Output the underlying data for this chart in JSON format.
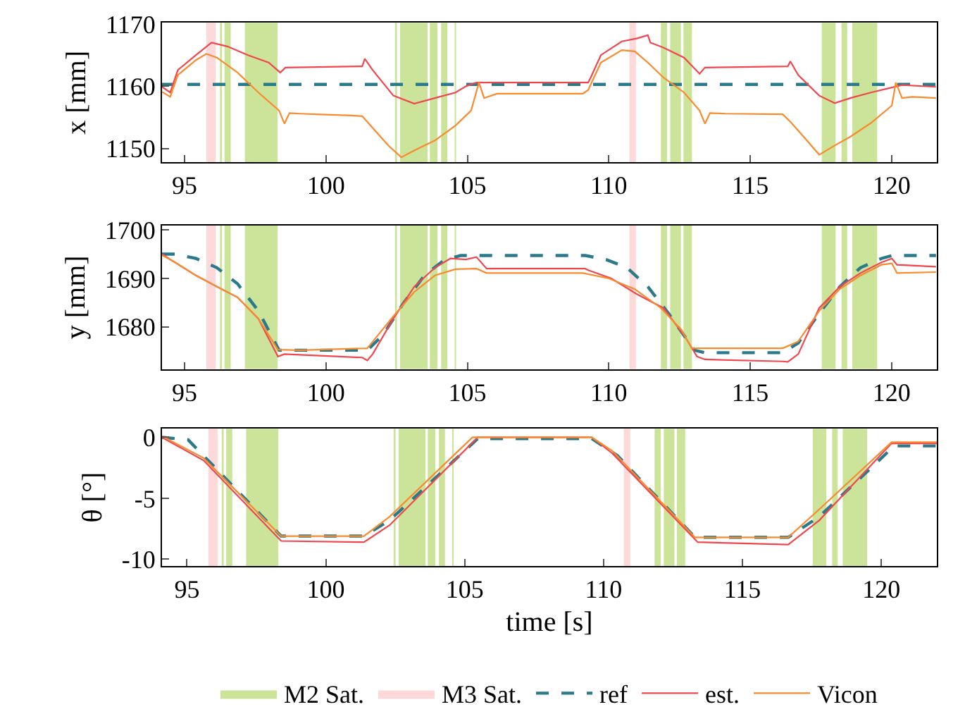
{
  "chart_data": [
    {
      "type": "line",
      "ylabel": "x [mm]",
      "xlim": [
        94.2,
        121.6
      ],
      "xticks": [
        95,
        100,
        105,
        110,
        115,
        120
      ],
      "ylim": [
        1147.8,
        1170.2
      ],
      "yticks": [
        1150,
        1160,
        1170
      ],
      "grid": false,
      "bands": [
        {
          "axis": "x",
          "from": 96.25,
          "to": 96.32,
          "color": "#cce49a"
        },
        {
          "axis": "x",
          "from": 96.41,
          "to": 96.63,
          "color": "#cce49a"
        },
        {
          "axis": "x",
          "from": 97.13,
          "to": 98.29,
          "color": "#cce49a"
        },
        {
          "axis": "x",
          "from": 102.44,
          "to": 102.51,
          "color": "#cce49a"
        },
        {
          "axis": "x",
          "from": 102.62,
          "to": 103.59,
          "color": "#cce49a"
        },
        {
          "axis": "x",
          "from": 103.67,
          "to": 103.94,
          "color": "#cce49a"
        },
        {
          "axis": "x",
          "from": 104.07,
          "to": 104.29,
          "color": "#cce49a"
        },
        {
          "axis": "x",
          "from": 104.55,
          "to": 104.6,
          "color": "#cce49a"
        },
        {
          "axis": "x",
          "from": 111.84,
          "to": 112.06,
          "color": "#cce49a"
        },
        {
          "axis": "x",
          "from": 112.17,
          "to": 112.55,
          "color": "#cce49a"
        },
        {
          "axis": "x",
          "from": 112.64,
          "to": 112.94,
          "color": "#cce49a"
        },
        {
          "axis": "x",
          "from": 117.53,
          "to": 118.02,
          "color": "#cce49a"
        },
        {
          "axis": "x",
          "from": 118.23,
          "to": 118.43,
          "color": "#cce49a"
        },
        {
          "axis": "x",
          "from": 118.61,
          "to": 119.49,
          "color": "#cce49a"
        },
        {
          "axis": "x",
          "from": 95.77,
          "to": 96.1,
          "color": "#fdd9d9"
        },
        {
          "axis": "x",
          "from": 110.73,
          "to": 110.96,
          "color": "#fdd9d9"
        }
      ],
      "series": [
        {
          "color": "#2a7a8c",
          "line_style": "dashed",
          "x": [
            94.2,
            121.6
          ],
          "values": [
            1160.3,
            1160.3
          ]
        },
        {
          "color": "#f0474f",
          "x": [
            94.2,
            94.49,
            94.76,
            95.4,
            95.95,
            96.51,
            97.24,
            97.97,
            98.38,
            98.56,
            101.28,
            101.37,
            101.65,
            102.38,
            103.12,
            103.85,
            104.58,
            104.95,
            105.32,
            109.27,
            109.36,
            109.72,
            110.46,
            111.01,
            111.38,
            111.47,
            111.93,
            112.66,
            113.21,
            113.4,
            116.33,
            116.42,
            116.7,
            117.44,
            117.99,
            118.54,
            119.27,
            120.01,
            120.37,
            121.57
          ],
          "values": [
            1159.9,
            1159.0,
            1162.6,
            1165.0,
            1167.0,
            1166.4,
            1165.0,
            1163.8,
            1162.2,
            1163.0,
            1163.2,
            1164.4,
            1162.6,
            1158.5,
            1157.2,
            1158.1,
            1159.0,
            1160.0,
            1160.6,
            1160.6,
            1161.4,
            1165.0,
            1167.2,
            1167.7,
            1168.2,
            1167.0,
            1166.2,
            1164.6,
            1162.0,
            1163.0,
            1163.2,
            1164.0,
            1161.8,
            1158.5,
            1157.3,
            1158.1,
            1159.0,
            1159.8,
            1160.2,
            1159.9
          ]
        },
        {
          "color": "#f98a2e",
          "x": [
            94.2,
            94.49,
            94.76,
            95.4,
            95.77,
            96.14,
            96.87,
            97.61,
            98.34,
            98.53,
            98.71,
            99.08,
            99.63,
            100.91,
            101.28,
            101.65,
            102.2,
            102.66,
            103.12,
            103.85,
            104.58,
            105.13,
            105.41,
            105.59,
            106.05,
            109.08,
            109.27,
            109.72,
            110.46,
            110.92,
            111.38,
            111.93,
            112.66,
            113.21,
            113.4,
            113.58,
            114.13,
            116.15,
            116.42,
            116.89,
            117.44,
            117.99,
            118.54,
            119.27,
            120.01,
            120.15,
            120.37,
            120.74,
            121.57
          ],
          "values": [
            1159.1,
            1158.3,
            1161.8,
            1164.2,
            1165.2,
            1164.6,
            1162.2,
            1159.0,
            1156.1,
            1154.0,
            1155.7,
            1155.6,
            1155.5,
            1155.3,
            1155.2,
            1153.3,
            1150.5,
            1148.6,
            1149.7,
            1151.3,
            1153.7,
            1156.1,
            1160.6,
            1158.1,
            1158.8,
            1158.8,
            1159.4,
            1163.8,
            1165.8,
            1165.6,
            1163.8,
            1161.4,
            1159.0,
            1156.1,
            1154.0,
            1155.7,
            1155.6,
            1155.5,
            1154.3,
            1151.9,
            1149.0,
            1150.5,
            1151.9,
            1154.1,
            1156.9,
            1160.6,
            1158.1,
            1158.3,
            1158.1
          ]
        }
      ]
    },
    {
      "type": "line",
      "ylabel": "y [mm]",
      "xlim": [
        94.2,
        121.6
      ],
      "xticks": [
        95,
        100,
        105,
        110,
        115,
        120
      ],
      "ylim": [
        1671.3,
        1700.9
      ],
      "yticks": [
        1680,
        1690,
        1700
      ],
      "grid": false,
      "bands": [
        {
          "axis": "x",
          "from": 96.25,
          "to": 96.32,
          "color": "#cce49a"
        },
        {
          "axis": "x",
          "from": 96.41,
          "to": 96.63,
          "color": "#cce49a"
        },
        {
          "axis": "x",
          "from": 97.13,
          "to": 98.29,
          "color": "#cce49a"
        },
        {
          "axis": "x",
          "from": 102.44,
          "to": 102.51,
          "color": "#cce49a"
        },
        {
          "axis": "x",
          "from": 102.62,
          "to": 103.59,
          "color": "#cce49a"
        },
        {
          "axis": "x",
          "from": 103.67,
          "to": 103.94,
          "color": "#cce49a"
        },
        {
          "axis": "x",
          "from": 104.07,
          "to": 104.29,
          "color": "#cce49a"
        },
        {
          "axis": "x",
          "from": 104.55,
          "to": 104.6,
          "color": "#cce49a"
        },
        {
          "axis": "x",
          "from": 111.84,
          "to": 112.06,
          "color": "#cce49a"
        },
        {
          "axis": "x",
          "from": 112.17,
          "to": 112.55,
          "color": "#cce49a"
        },
        {
          "axis": "x",
          "from": 112.64,
          "to": 112.94,
          "color": "#cce49a"
        },
        {
          "axis": "x",
          "from": 117.53,
          "to": 118.02,
          "color": "#cce49a"
        },
        {
          "axis": "x",
          "from": 118.23,
          "to": 118.43,
          "color": "#cce49a"
        },
        {
          "axis": "x",
          "from": 118.61,
          "to": 119.49,
          "color": "#cce49a"
        },
        {
          "axis": "x",
          "from": 95.77,
          "to": 96.1,
          "color": "#fdd9d9"
        },
        {
          "axis": "x",
          "from": 110.73,
          "to": 110.96,
          "color": "#fdd9d9"
        }
      ],
      "series": [
        {
          "color": "#2a7a8c",
          "line_style": "dashed",
          "x": [
            94.2,
            94.67,
            95.4,
            96.14,
            96.87,
            97.61,
            98.34,
            101.46,
            102.01,
            102.75,
            103.48,
            104.21,
            104.76,
            109.17,
            109.9,
            110.64,
            111.38,
            112.11,
            113.03,
            113.4,
            116.15,
            116.7,
            117.44,
            118.17,
            118.9,
            119.64,
            120.01,
            121.57
          ],
          "values": [
            1695.0,
            1695.0,
            1694.1,
            1692.2,
            1688.9,
            1683.3,
            1675.2,
            1675.2,
            1678.3,
            1685.0,
            1690.6,
            1693.9,
            1694.7,
            1694.7,
            1693.9,
            1692.2,
            1688.3,
            1682.8,
            1675.2,
            1674.7,
            1674.7,
            1676.7,
            1682.8,
            1688.3,
            1692.2,
            1694.1,
            1694.7,
            1694.7
          ]
        },
        {
          "color": "#f0474f",
          "x": [
            94.2,
            94.49,
            95.4,
            96.14,
            96.87,
            97.61,
            98.3,
            98.53,
            101.28,
            101.46,
            101.65,
            102.38,
            103.12,
            103.85,
            104.4,
            104.95,
            105.32,
            105.68,
            109.17,
            109.27,
            110.09,
            111.01,
            111.93,
            112.66,
            113.12,
            113.4,
            116.15,
            116.33,
            116.7,
            117.44,
            118.17,
            118.9,
            119.64,
            120.01,
            120.19,
            121.57
          ],
          "values": [
            1695.0,
            1693.9,
            1690.6,
            1688.3,
            1686.1,
            1681.7,
            1673.9,
            1674.4,
            1673.7,
            1673.1,
            1674.4,
            1681.7,
            1688.3,
            1692.2,
            1694.1,
            1693.9,
            1694.4,
            1692.0,
            1692.0,
            1691.7,
            1690.0,
            1686.7,
            1683.9,
            1678.3,
            1673.9,
            1673.3,
            1672.9,
            1672.8,
            1674.4,
            1683.9,
            1688.3,
            1691.1,
            1693.3,
            1694.1,
            1692.8,
            1692.4
          ]
        },
        {
          "color": "#f98a2e",
          "x": [
            94.2,
            94.67,
            95.4,
            96.14,
            96.87,
            97.61,
            98.3,
            99.08,
            101.46,
            102.38,
            103.12,
            103.85,
            104.58,
            105.32,
            105.68,
            109.08,
            110.0,
            110.92,
            111.84,
            112.57,
            112.93,
            116.15,
            116.7,
            117.44,
            118.17,
            118.9,
            119.64,
            120.01,
            120.19,
            121.57
          ],
          "values": [
            1694.8,
            1693.3,
            1690.6,
            1688.3,
            1686.1,
            1681.7,
            1675.3,
            1675.2,
            1675.6,
            1682.2,
            1687.2,
            1690.6,
            1691.9,
            1692.0,
            1691.1,
            1691.1,
            1690.0,
            1687.8,
            1683.9,
            1679.4,
            1675.6,
            1675.6,
            1677.0,
            1683.3,
            1687.8,
            1690.6,
            1692.8,
            1693.1,
            1691.1,
            1691.3
          ]
        }
      ]
    },
    {
      "type": "line",
      "ylabel": "θ [°]",
      "xlabel": "time [s]",
      "xlim": [
        94.1,
        122.0
      ],
      "xticks": [
        95,
        100,
        105,
        110,
        115,
        120
      ],
      "ylim": [
        -10.55,
        0.7
      ],
      "yticks": [
        -10,
        -5,
        0
      ],
      "grid": false,
      "legend": "bottom",
      "bands": [
        {
          "axis": "x",
          "from": 96.25,
          "to": 96.32,
          "color": "#cce49a",
          "label": "M2 Sat."
        },
        {
          "axis": "x",
          "from": 96.41,
          "to": 96.63,
          "color": "#cce49a"
        },
        {
          "axis": "x",
          "from": 97.13,
          "to": 98.29,
          "color": "#cce49a"
        },
        {
          "axis": "x",
          "from": 102.44,
          "to": 102.51,
          "color": "#cce49a"
        },
        {
          "axis": "x",
          "from": 102.62,
          "to": 103.59,
          "color": "#cce49a"
        },
        {
          "axis": "x",
          "from": 103.67,
          "to": 103.94,
          "color": "#cce49a"
        },
        {
          "axis": "x",
          "from": 104.07,
          "to": 104.29,
          "color": "#cce49a"
        },
        {
          "axis": "x",
          "from": 104.55,
          "to": 104.6,
          "color": "#cce49a"
        },
        {
          "axis": "x",
          "from": 111.84,
          "to": 112.06,
          "color": "#cce49a"
        },
        {
          "axis": "x",
          "from": 112.17,
          "to": 112.55,
          "color": "#cce49a"
        },
        {
          "axis": "x",
          "from": 112.64,
          "to": 112.94,
          "color": "#cce49a"
        },
        {
          "axis": "x",
          "from": 117.53,
          "to": 118.02,
          "color": "#cce49a"
        },
        {
          "axis": "x",
          "from": 118.23,
          "to": 118.43,
          "color": "#cce49a"
        },
        {
          "axis": "x",
          "from": 118.61,
          "to": 119.49,
          "color": "#cce49a"
        },
        {
          "axis": "x",
          "from": 95.77,
          "to": 96.1,
          "color": "#fdd9d9",
          "label": "M3 Sat."
        },
        {
          "axis": "x",
          "from": 110.73,
          "to": 110.96,
          "color": "#fdd9d9"
        }
      ],
      "series": [
        {
          "name": "ref",
          "color": "#2a7a8c",
          "line_style": "dashed",
          "x": [
            94.1,
            95.04,
            98.39,
            101.37,
            102.3,
            105.47,
            109.57,
            110.5,
            113.29,
            116.65,
            117.77,
            120.47,
            122.0
          ],
          "values": [
            0,
            -0.2,
            -8.1,
            -8.1,
            -6.8,
            -0.1,
            -0.1,
            -1.5,
            -8.2,
            -8.2,
            -6.5,
            -0.7,
            -0.7
          ]
        },
        {
          "name": "est.",
          "color": "#f0474f",
          "x": [
            94.1,
            95.6,
            98.39,
            101.37,
            102.3,
            105.47,
            109.57,
            110.31,
            113.39,
            116.65,
            117.77,
            120.37,
            122.0
          ],
          "values": [
            0,
            -1.9,
            -8.5,
            -8.6,
            -7.2,
            0,
            0,
            -1.3,
            -8.6,
            -8.8,
            -6.8,
            -0.5,
            -0.5
          ]
        },
        {
          "name": "Vicon",
          "color": "#f98a2e",
          "x": [
            94.1,
            95.6,
            98.39,
            101.37,
            102.3,
            105.28,
            109.57,
            110.31,
            113.29,
            116.65,
            117.77,
            120.37,
            122.0
          ],
          "values": [
            0.1,
            -1.7,
            -8.1,
            -8.1,
            -6.5,
            0,
            0,
            -1.1,
            -8.2,
            -8.2,
            -5.9,
            -0.4,
            -0.4
          ]
        }
      ]
    }
  ]
}
